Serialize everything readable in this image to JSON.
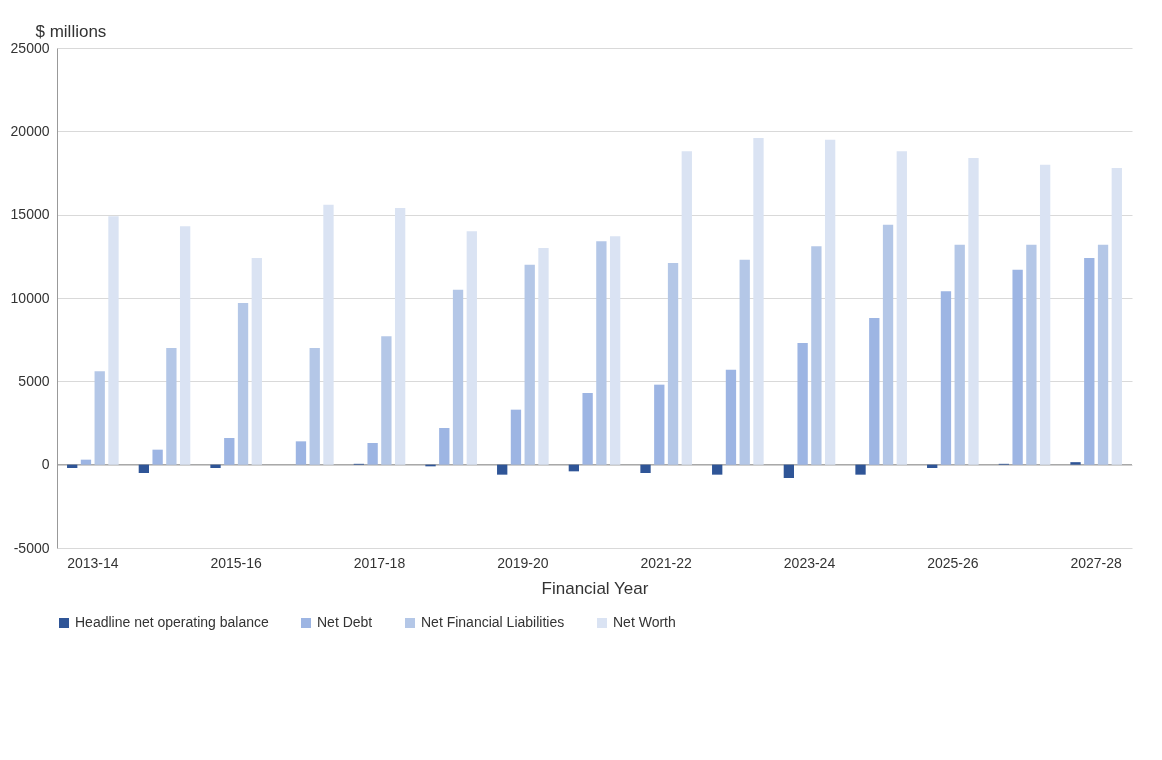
{
  "chart_data": {
    "type": "bar",
    "xlabel": "Financial Year",
    "ylabel": "$ millions",
    "categories": [
      "2013-14",
      null,
      "2015-16",
      null,
      "2017-18",
      null,
      "2019-20",
      null,
      "2021-22",
      null,
      "2023-24",
      null,
      "2025-26",
      null,
      "2027-28"
    ],
    "series": [
      {
        "name": "Headline net operating balance",
        "color": "#2f5597",
        "values": [
          -200,
          -500,
          -200,
          0,
          50,
          -100,
          -600,
          -400,
          -500,
          -600,
          -800,
          -600,
          -200,
          50,
          150
        ]
      },
      {
        "name": "Net Debt",
        "color": "#9db5e3",
        "values": [
          300,
          900,
          1600,
          1400,
          1300,
          2200,
          3300,
          4300,
          4800,
          5700,
          7300,
          8800,
          10400,
          11700,
          12400
        ]
      },
      {
        "name": "Net Financial Liabilities",
        "color": "#b4c7e7",
        "values": [
          5600,
          7000,
          9700,
          7000,
          7700,
          10500,
          12000,
          13400,
          12100,
          12300,
          13100,
          14400,
          13200,
          13200,
          13200
        ]
      },
      {
        "name": "Net Worth",
        "color": "#dae3f3",
        "values": [
          14900,
          14300,
          12400,
          15600,
          15400,
          14000,
          13000,
          13700,
          18800,
          19600,
          19500,
          18800,
          18400,
          18000,
          17800
        ]
      }
    ],
    "ylim": [
      -5000,
      25000
    ],
    "yticks": [
      -5000,
      0,
      5000,
      10000,
      15000,
      20000,
      25000
    ],
    "grid": "y",
    "legend": "bottom"
  }
}
